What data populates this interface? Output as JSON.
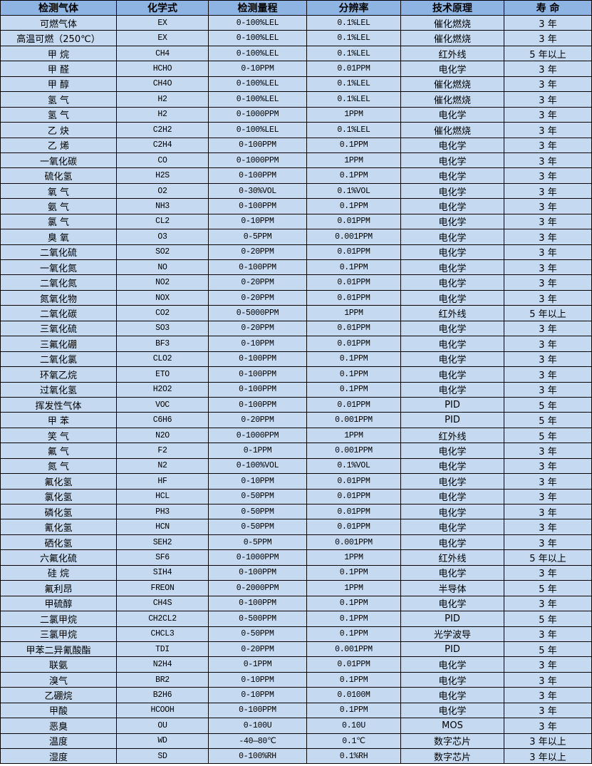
{
  "colors": {
    "header_bg": "#8DB4E2",
    "body_bg": "#C5D9F1",
    "border": "#000000"
  },
  "table": {
    "headers": [
      "检测气体",
      "化学式",
      "检测量程",
      "分辨率",
      "技术原理",
      "寿 命"
    ],
    "rows": [
      [
        "可燃气体",
        "EX",
        "0-100%LEL",
        "0.1%LEL",
        "催化燃烧",
        "3 年"
      ],
      [
        "高温可燃（250℃）",
        "EX",
        "0-100%LEL",
        "0.1%LEL",
        "催化燃烧",
        "3 年"
      ],
      [
        "甲 烷",
        "CH4",
        "0-100%LEL",
        "0.1%LEL",
        "红外线",
        "5 年以上"
      ],
      [
        "甲 醛",
        "HCHO",
        "0-10PPM",
        "0.01PPM",
        "电化学",
        "3 年"
      ],
      [
        "甲 醇",
        "CH4O",
        "0-100%LEL",
        "0.1%LEL",
        "催化燃烧",
        "3 年"
      ],
      [
        "氢 气",
        "H2",
        "0-100%LEL",
        "0.1%LEL",
        "催化燃烧",
        "3 年"
      ],
      [
        "氢 气",
        "H2",
        "0-1000PPM",
        "1PPM",
        "电化学",
        "3 年"
      ],
      [
        "乙 炔",
        "C2H2",
        "0-100%LEL",
        "0.1%LEL",
        "催化燃烧",
        "3 年"
      ],
      [
        "乙 烯",
        "C2H4",
        "0-100PPM",
        "0.1PPM",
        "电化学",
        "3 年"
      ],
      [
        "一氧化碳",
        "CO",
        "0-1000PPM",
        "1PPM",
        "电化学",
        "3 年"
      ],
      [
        "硫化氢",
        "H2S",
        "0-100PPM",
        "0.1PPM",
        "电化学",
        "3 年"
      ],
      [
        "氧 气",
        "O2",
        "0-30%VOL",
        "0.1%VOL",
        "电化学",
        "3 年"
      ],
      [
        "氨 气",
        "NH3",
        "0-100PPM",
        "0.1PPM",
        "电化学",
        "3 年"
      ],
      [
        "氯 气",
        "CL2",
        "0-10PPM",
        "0.01PPM",
        "电化学",
        "3 年"
      ],
      [
        "臭 氧",
        "O3",
        "0-5PPM",
        "0.001PPM",
        "电化学",
        "3 年"
      ],
      [
        "二氧化硫",
        "SO2",
        "0-20PPM",
        "0.01PPM",
        "电化学",
        "3 年"
      ],
      [
        "一氧化氮",
        "NO",
        "0-100PPM",
        "0.1PPM",
        "电化学",
        "3 年"
      ],
      [
        "二氧化氮",
        "NO2",
        "0-20PPM",
        "0.01PPM",
        "电化学",
        "3 年"
      ],
      [
        "氮氧化物",
        "NOX",
        "0-20PPM",
        "0.01PPM",
        "电化学",
        "3 年"
      ],
      [
        "二氧化碳",
        "CO2",
        "0-5000PPM",
        "1PPM",
        "红外线",
        "5 年以上"
      ],
      [
        "三氧化硫",
        "SO3",
        "0-20PPM",
        "0.01PPM",
        "电化学",
        "3 年"
      ],
      [
        "三氟化硼",
        "BF3",
        "0-10PPM",
        "0.01PPM",
        "电化学",
        "3 年"
      ],
      [
        "二氧化氯",
        "CLO2",
        "0-100PPM",
        "0.1PPM",
        "电化学",
        "3 年"
      ],
      [
        "环氧乙烷",
        "ETO",
        "0-100PPM",
        "0.1PPM",
        "电化学",
        "3 年"
      ],
      [
        "过氧化氢",
        "H2O2",
        "0-100PPM",
        "0.1PPM",
        "电化学",
        "3 年"
      ],
      [
        "挥发性气体",
        "VOC",
        "0-100PPM",
        "0.01PPM",
        "PID",
        "5 年"
      ],
      [
        "甲 苯",
        "C6H6",
        "0-20PPM",
        "0.001PPM",
        "PID",
        "5 年"
      ],
      [
        "笑 气",
        "N2O",
        "0-1000PPM",
        "1PPM",
        "红外线",
        "5 年"
      ],
      [
        "氟 气",
        "F2",
        "0-1PPM",
        "0.001PPM",
        "电化学",
        "3 年"
      ],
      [
        "氮 气",
        "N2",
        "0-100%VOL",
        "0.1%VOL",
        "电化学",
        "3 年"
      ],
      [
        "氟化氢",
        "HF",
        "0-10PPM",
        "0.01PPM",
        "电化学",
        "3 年"
      ],
      [
        "氯化氢",
        "HCL",
        "0-50PPM",
        "0.01PPM",
        "电化学",
        "3 年"
      ],
      [
        "磷化氢",
        "PH3",
        "0-50PPM",
        "0.01PPM",
        "电化学",
        "3 年"
      ],
      [
        "氰化氢",
        "HCN",
        "0-50PPM",
        "0.01PPM",
        "电化学",
        "3 年"
      ],
      [
        "硒化氢",
        "SEH2",
        "0-5PPM",
        "0.001PPM",
        "电化学",
        "3 年"
      ],
      [
        "六氟化硫",
        "SF6",
        "0-1000PPM",
        "1PPM",
        "红外线",
        "5 年以上"
      ],
      [
        "硅 烷",
        "SIH4",
        "0-100PPM",
        "0.1PPM",
        "电化学",
        "3 年"
      ],
      [
        "氟利昂",
        "FREON",
        "0-2000PPM",
        "1PPM",
        "半导体",
        "5 年"
      ],
      [
        "甲硫醇",
        "CH4S",
        "0-100PPM",
        "0.1PPM",
        "电化学",
        "3 年"
      ],
      [
        "二氯甲烷",
        "CH2CL2",
        "0-500PPM",
        "0.1PPM",
        "PID",
        "5 年"
      ],
      [
        "三氯甲烷",
        "CHCL3",
        "0-50PPM",
        "0.1PPM",
        "光学波导",
        "3 年"
      ],
      [
        "甲苯二异氰酸酯",
        "TDI",
        "0-20PPM",
        "0.001PPM",
        "PID",
        "5 年"
      ],
      [
        "联氨",
        "N2H4",
        "0-1PPM",
        "0.01PPM",
        "电化学",
        "3 年"
      ],
      [
        "溴气",
        "BR2",
        "0-10PPM",
        "0.1PPM",
        "电化学",
        "3 年"
      ],
      [
        "乙硼烷",
        "B2H6",
        "0-10PPM",
        "0.0100M",
        "电化学",
        "3 年"
      ],
      [
        "甲酸",
        "HCOOH",
        "0-100PPM",
        "0.1PPM",
        "电化学",
        "3 年"
      ],
      [
        "恶臭",
        "OU",
        "0-100U",
        "0.10U",
        "MOS",
        "3 年"
      ],
      [
        "温度",
        "WD",
        "-40—80℃",
        "0.1℃",
        "数字芯片",
        "3 年以上"
      ],
      [
        "湿度",
        "SD",
        "0-100%RH",
        "0.1%RH",
        "数字芯片",
        "3 年以上"
      ]
    ]
  }
}
